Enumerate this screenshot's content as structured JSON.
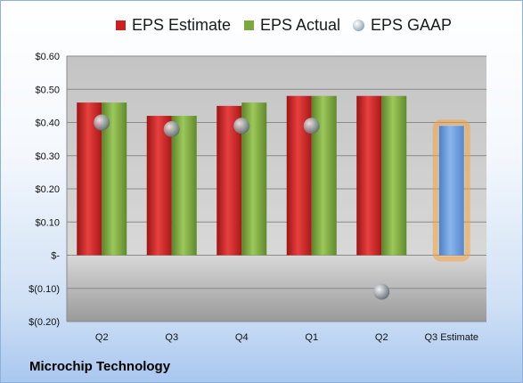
{
  "company": "Microchip Technology",
  "legend": {
    "estimate_label": "EPS Estimate",
    "actual_label": "EPS Actual",
    "gaap_label": "EPS GAAP"
  },
  "colors": {
    "estimate": "#cc2020",
    "actual": "#7aa83a",
    "gaap": "#a8b8c8",
    "future_estimate": "#6fa0de",
    "highlight": "#f5a33a"
  },
  "chart_data": {
    "type": "bar",
    "categories": [
      "Q2",
      "Q3",
      "Q4",
      "Q1",
      "Q2",
      "Q3 Estimate"
    ],
    "series": [
      {
        "name": "EPS Estimate",
        "values": [
          0.46,
          0.42,
          0.45,
          0.48,
          0.48,
          null
        ]
      },
      {
        "name": "EPS Actual",
        "values": [
          0.46,
          0.42,
          0.46,
          0.48,
          0.48,
          null
        ]
      },
      {
        "name": "EPS GAAP",
        "values": [
          0.4,
          0.38,
          0.39,
          0.39,
          -0.11,
          null
        ]
      }
    ],
    "future_estimate": {
      "category": "Q3 Estimate",
      "value": 0.39
    },
    "ylim": [
      -0.2,
      0.6
    ],
    "yticks": [
      0.6,
      0.5,
      0.4,
      0.3,
      0.2,
      0.1,
      0,
      -0.1,
      -0.2
    ],
    "ytick_labels": [
      "$0.60",
      "$0.50",
      "$0.40",
      "$0.30",
      "$0.20",
      "$0.10",
      "$-",
      "$(0.10)",
      "$(0.20)"
    ],
    "grid": true,
    "legend_position": "top"
  }
}
